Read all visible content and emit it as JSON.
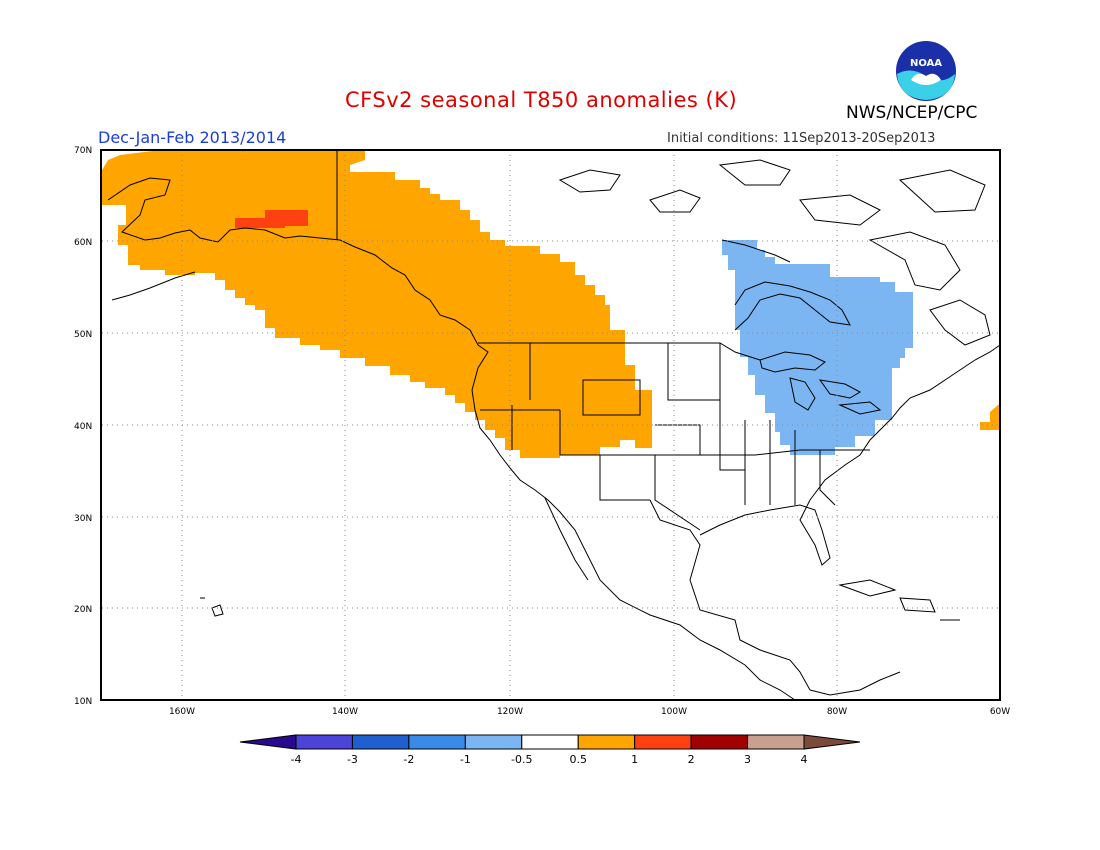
{
  "header": {
    "title": "CFSv2 seasonal T850 anomalies (K)",
    "agency": "NWS/NCEP/CPC",
    "logo_text": "NOAA",
    "season": "Dec-Jan-Feb 2013/2014",
    "initial_conditions": "Initial conditions: 11Sep2013-20Sep2013"
  },
  "axes": {
    "lat_labels": [
      "70N",
      "60N",
      "50N",
      "40N",
      "30N",
      "20N",
      "10N"
    ],
    "lon_labels": [
      "160W",
      "140W",
      "120W",
      "100W",
      "80W",
      "60W"
    ]
  },
  "colorbar": {
    "labels": [
      "-4",
      "-3",
      "-2",
      "-1",
      "-0.5",
      "0.5",
      "1",
      "2",
      "3",
      "4"
    ],
    "colors": [
      "#2a0a8c",
      "#4a44d8",
      "#1f5fd0",
      "#3a8ae8",
      "#7bb6f2",
      "#ffffff",
      "#ffa500",
      "#ff4010",
      "#a00000",
      "#c8a090",
      "#7a4a3a"
    ]
  },
  "anomaly_regions": [
    {
      "name": "Alaska and western North America warm anomaly",
      "range": "0.5 to 1",
      "color": "#ffa500"
    },
    {
      "name": "Alaska interior strong warm anomaly",
      "range": "1 to 2",
      "color": "#ff4010"
    },
    {
      "name": "Great Lakes and eastern North America cold anomaly",
      "range": "-1 to -0.5",
      "color": "#7bb6f2"
    },
    {
      "name": "Atlantic coast warm anomaly",
      "range": "0.5 to 1",
      "color": "#ffa500"
    }
  ]
}
